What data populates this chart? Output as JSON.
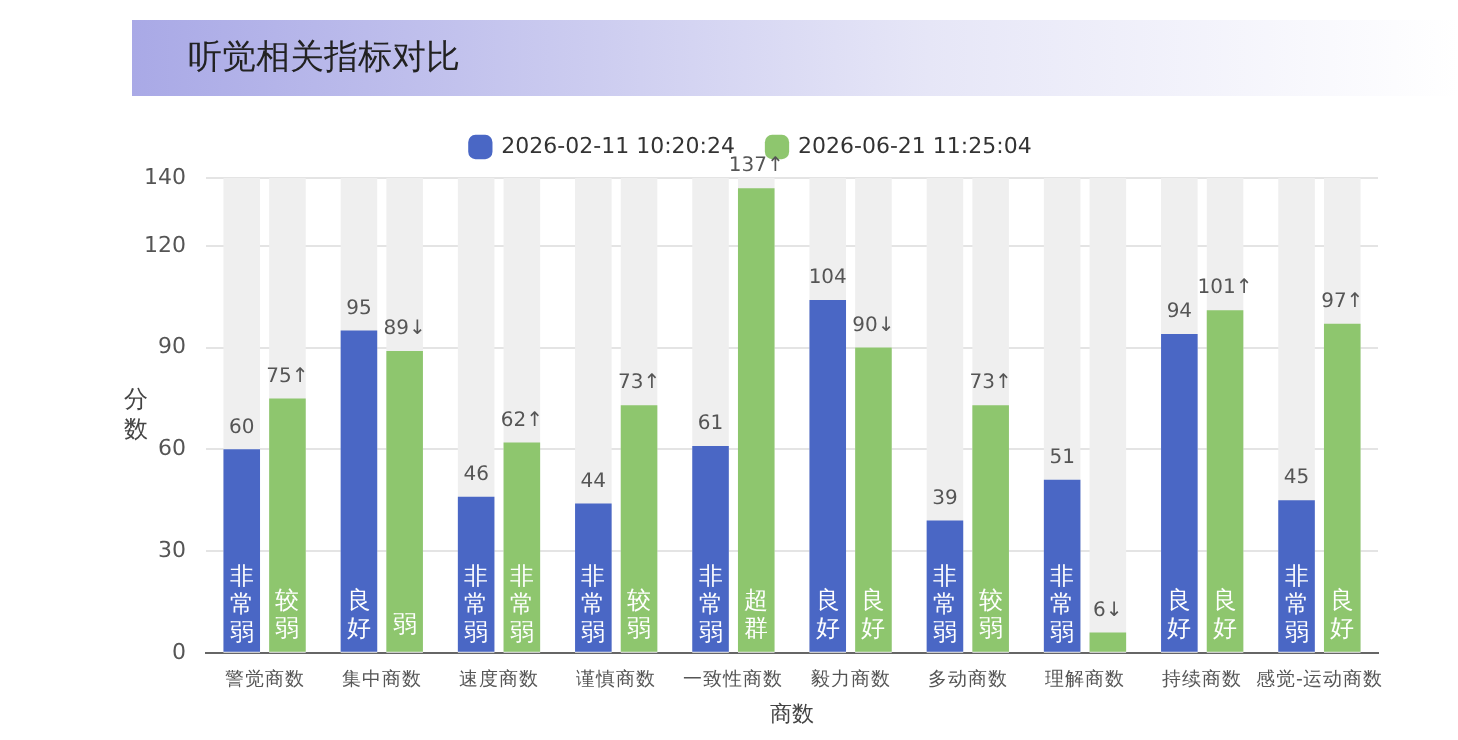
{
  "chart_data": {
    "type": "bar",
    "title": "听觉相关指标对比",
    "xlabel": "商数",
    "ylabel": "分数",
    "categories": [
      "警觉商数",
      "集中商数",
      "速度商数",
      "谨慎商数",
      "一致性商数",
      "毅力商数",
      "多动商数",
      "理解商数",
      "持续商数",
      "感觉-运动商数"
    ],
    "series": [
      {
        "name": "2026-02-11 10:20:24",
        "color": "#4a67c5",
        "values": [
          60,
          95,
          46,
          44,
          61,
          104,
          39,
          51,
          94,
          45
        ],
        "value_labels": [
          "60",
          "95",
          "46",
          "44",
          "61",
          "104",
          "39",
          "51",
          "94",
          "45"
        ]
      },
      {
        "name": "2026-06-21 11:25:04",
        "color": "#8ec66e",
        "values": [
          75,
          89,
          62,
          73,
          137,
          90,
          73,
          6,
          101,
          97
        ],
        "value_labels": [
          "75↑",
          "89↓",
          "62↑",
          "73↑",
          "137↑",
          "90↓",
          "73↑",
          "6↓",
          "101↑",
          "97↑"
        ]
      }
    ],
    "annotations": [
      {
        "text": "非常弱",
        "x": "警觉商数",
        "y": 14
      },
      {
        "text": "较弱",
        "x": "警觉商数",
        "y": 11
      },
      {
        "text": "良好",
        "x": "集中商数",
        "y": 11
      },
      {
        "text": "弱",
        "x": "集中商数",
        "y": 8
      },
      {
        "text": "非常弱",
        "x": "速度商数",
        "y": 14
      },
      {
        "text": "非常弱",
        "x": "速度商数",
        "y": 14
      },
      {
        "text": "非常弱",
        "x": "谨慎商数",
        "y": 14
      },
      {
        "text": "较弱",
        "x": "谨慎商数",
        "y": 11
      },
      {
        "text": "非常弱",
        "x": "一致性商数",
        "y": 14
      },
      {
        "text": "超群",
        "x": "一致性商数",
        "y": 11
      },
      {
        "text": "良好",
        "x": "毅力商数",
        "y": 11
      },
      {
        "text": "良好",
        "x": "毅力商数",
        "y": 11
      },
      {
        "text": "非常弱",
        "x": "多动商数",
        "y": 14
      },
      {
        "text": "较弱",
        "x": "多动商数",
        "y": 11
      },
      {
        "text": "非常弱",
        "x": "理解商数",
        "y": 14
      },
      {
        "text": "良好",
        "x": "持续商数",
        "y": 11
      },
      {
        "text": "良好",
        "x": "持续商数",
        "y": 11
      },
      {
        "text": "非常弱",
        "x": "感觉-运动商数",
        "y": 14
      },
      {
        "text": "良好",
        "x": "感觉-运动商数",
        "y": 11
      }
    ],
    "ylim": [
      0,
      140
    ],
    "yticks": [
      0,
      30,
      60,
      90,
      120,
      140
    ],
    "grid": "y",
    "legend": "top"
  }
}
